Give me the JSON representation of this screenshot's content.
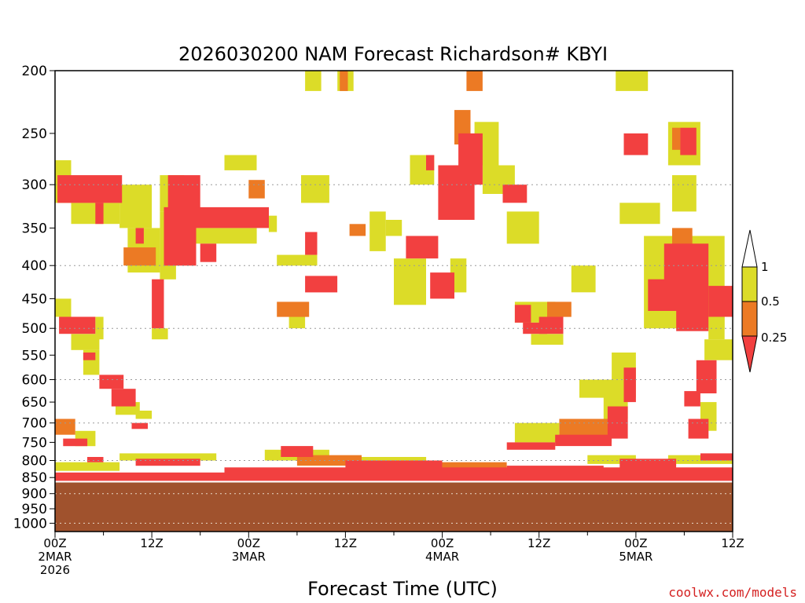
{
  "chart_data": {
    "type": "heatmap",
    "title": "2026030200 NAM Forecast Richardson# KBYI",
    "xlabel": "Forecast Time (UTC)",
    "ylabel": "",
    "x_range_hours": [
      0,
      84
    ],
    "y_range_hpa": [
      200,
      1030
    ],
    "y_scale": "log-pressure",
    "y_ticks": [
      200,
      250,
      300,
      350,
      400,
      450,
      500,
      550,
      600,
      650,
      700,
      750,
      800,
      850,
      900,
      950,
      1000
    ],
    "y_gridlines": [
      300,
      400,
      500,
      600,
      700,
      800,
      900,
      1000
    ],
    "x_ticks": [
      {
        "hour": 0,
        "lines": [
          "00Z",
          "2MAR",
          "2026"
        ]
      },
      {
        "hour": 12,
        "lines": [
          "12Z"
        ]
      },
      {
        "hour": 24,
        "lines": [
          "00Z",
          "3MAR"
        ]
      },
      {
        "hour": 36,
        "lines": [
          "12Z"
        ]
      },
      {
        "hour": 48,
        "lines": [
          "00Z",
          "4MAR"
        ]
      },
      {
        "hour": 60,
        "lines": [
          "12Z"
        ]
      },
      {
        "hour": 72,
        "lines": [
          "00Z",
          "5MAR"
        ]
      },
      {
        "hour": 84,
        "lines": [
          "12Z"
        ]
      }
    ],
    "legend": {
      "placement": "right",
      "labels": [
        "1",
        "0.5",
        "0.25"
      ],
      "bins": [
        {
          "range": "0.5-1",
          "color": "#dcdc28"
        },
        {
          "range": "0.25-0.5",
          "color": "#ec7a24"
        },
        {
          "range": "<0.25",
          "color": "#f24040"
        }
      ]
    },
    "ground_level_hpa": 865,
    "ground_color": "#a0522d",
    "regions": [
      {
        "level": "lt0.25",
        "hours": [
          0.3,
          8.3
        ],
        "p": [
          290,
          320
        ]
      },
      {
        "level": "lt0.25",
        "hours": [
          5,
          6
        ],
        "p": [
          320,
          345
        ]
      },
      {
        "level": "0.5-1",
        "hours": [
          0,
          2
        ],
        "p": [
          275,
          320
        ]
      },
      {
        "level": "0.5-1",
        "hours": [
          2,
          8
        ],
        "p": [
          320,
          345
        ]
      },
      {
        "level": "0.5-1",
        "hours": [
          8,
          12
        ],
        "p": [
          300,
          350
        ]
      },
      {
        "level": "0.5-1",
        "hours": [
          9,
          13
        ],
        "p": [
          350,
          410
        ]
      },
      {
        "level": "0.25-0.5",
        "hours": [
          8.5,
          12.5
        ],
        "p": [
          375,
          400
        ]
      },
      {
        "level": "lt0.25",
        "hours": [
          10,
          11
        ],
        "p": [
          350,
          370
        ]
      },
      {
        "level": "0.5-1",
        "hours": [
          13,
          16
        ],
        "p": [
          290,
          330
        ]
      },
      {
        "level": "lt0.25",
        "hours": [
          14,
          18
        ],
        "p": [
          290,
          330
        ]
      },
      {
        "level": "lt0.25",
        "hours": [
          13.5,
          17.5
        ],
        "p": [
          325,
          400
        ]
      },
      {
        "level": "0.5-1",
        "hours": [
          13,
          15
        ],
        "p": [
          330,
          420
        ]
      },
      {
        "level": "lt0.25",
        "hours": [
          17,
          26.5
        ],
        "p": [
          325,
          350
        ]
      },
      {
        "level": "0.5-1",
        "hours": [
          17,
          25
        ],
        "p": [
          350,
          370
        ]
      },
      {
        "level": "0.5-1",
        "hours": [
          21,
          25
        ],
        "p": [
          270,
          285
        ]
      },
      {
        "level": "0.25-0.5",
        "hours": [
          24,
          26
        ],
        "p": [
          295,
          315
        ]
      },
      {
        "level": "lt0.25",
        "hours": [
          18,
          20
        ],
        "p": [
          370,
          395
        ]
      },
      {
        "level": "lt0.25",
        "hours": [
          12,
          13.5
        ],
        "p": [
          420,
          500
        ]
      },
      {
        "level": "0.5-1",
        "hours": [
          12,
          14
        ],
        "p": [
          500,
          520
        ]
      },
      {
        "level": "0.5-1",
        "hours": [
          0,
          2
        ],
        "p": [
          450,
          480
        ]
      },
      {
        "level": "lt0.25",
        "hours": [
          0.5,
          5
        ],
        "p": [
          480,
          510
        ]
      },
      {
        "level": "0.5-1",
        "hours": [
          5,
          6
        ],
        "p": [
          480,
          520
        ]
      },
      {
        "level": "0.5-1",
        "hours": [
          2,
          5.5
        ],
        "p": [
          510,
          540
        ]
      },
      {
        "level": "0.5-1",
        "hours": [
          3.5,
          5.5
        ],
        "p": [
          540,
          590
        ]
      },
      {
        "level": "lt0.25",
        "hours": [
          3.5,
          5
        ],
        "p": [
          545,
          560
        ]
      },
      {
        "level": "lt0.25",
        "hours": [
          5.5,
          8.5
        ],
        "p": [
          590,
          620
        ]
      },
      {
        "level": "lt0.25",
        "hours": [
          7,
          10
        ],
        "p": [
          620,
          660
        ]
      },
      {
        "level": "0.5-1",
        "hours": [
          7.5,
          10.5
        ],
        "p": [
          650,
          680
        ]
      },
      {
        "level": "0.5-1",
        "hours": [
          10,
          12
        ],
        "p": [
          670,
          690
        ]
      },
      {
        "level": "0.25-0.5",
        "hours": [
          0,
          2.5
        ],
        "p": [
          690,
          730
        ]
      },
      {
        "level": "0.5-1",
        "hours": [
          2.5,
          5
        ],
        "p": [
          720,
          760
        ]
      },
      {
        "level": "lt0.25",
        "hours": [
          1,
          4
        ],
        "p": [
          740,
          760
        ]
      },
      {
        "level": "lt0.25",
        "hours": [
          9.5,
          11.5
        ],
        "p": [
          700,
          715
        ]
      },
      {
        "level": "lt0.25",
        "hours": [
          31,
          32.5
        ],
        "p": [
          355,
          385
        ]
      },
      {
        "level": "0.5-1",
        "hours": [
          27.5,
          32.5
        ],
        "p": [
          385,
          400
        ]
      },
      {
        "level": "lt0.25",
        "hours": [
          31,
          35
        ],
        "p": [
          415,
          440
        ]
      },
      {
        "level": "0.25-0.5",
        "hours": [
          27.5,
          31.5
        ],
        "p": [
          455,
          480
        ]
      },
      {
        "level": "0.5-1",
        "hours": [
          29,
          31
        ],
        "p": [
          480,
          500
        ]
      },
      {
        "level": "0.5-1",
        "hours": [
          30.5,
          34
        ],
        "p": [
          290,
          320
        ]
      },
      {
        "level": "0.5-1",
        "hours": [
          26.5,
          27.5
        ],
        "p": [
          335,
          355
        ]
      },
      {
        "level": "0.5-1",
        "hours": [
          39,
          41
        ],
        "p": [
          330,
          380
        ]
      },
      {
        "level": "0.5-1",
        "hours": [
          41,
          43
        ],
        "p": [
          340,
          360
        ]
      },
      {
        "level": "0.25-0.5",
        "hours": [
          36.5,
          38.5
        ],
        "p": [
          345,
          360
        ]
      },
      {
        "level": "lt0.25",
        "hours": [
          43.5,
          47.5
        ],
        "p": [
          360,
          390
        ]
      },
      {
        "level": "0.5-1",
        "hours": [
          42,
          46
        ],
        "p": [
          390,
          460
        ]
      },
      {
        "level": "lt0.25",
        "hours": [
          46.5,
          49.5
        ],
        "p": [
          410,
          450
        ]
      },
      {
        "level": "0.5-1",
        "hours": [
          49,
          51
        ],
        "p": [
          390,
          440
        ]
      },
      {
        "level": "lt0.25",
        "hours": [
          47.5,
          52
        ],
        "p": [
          280,
          340
        ]
      },
      {
        "level": "lt0.25",
        "hours": [
          50,
          53
        ],
        "p": [
          250,
          300
        ]
      },
      {
        "level": "0.25-0.5",
        "hours": [
          49.5,
          51.5
        ],
        "p": [
          230,
          260
        ]
      },
      {
        "level": "0.5-1",
        "hours": [
          52,
          55
        ],
        "p": [
          240,
          280
        ]
      },
      {
        "level": "0.5-1",
        "hours": [
          44,
          47
        ],
        "p": [
          270,
          300
        ]
      },
      {
        "level": "lt0.25",
        "hours": [
          46,
          47
        ],
        "p": [
          270,
          285
        ]
      },
      {
        "level": "0.5-1",
        "hours": [
          53,
          57
        ],
        "p": [
          280,
          310
        ]
      },
      {
        "level": "lt0.25",
        "hours": [
          55.5,
          58.5
        ],
        "p": [
          300,
          320
        ]
      },
      {
        "level": "0.5-1",
        "hours": [
          56,
          60
        ],
        "p": [
          330,
          370
        ]
      },
      {
        "level": "0.25-0.5",
        "hours": [
          51,
          53
        ],
        "p": [
          200,
          215
        ]
      },
      {
        "level": "0.5-1",
        "hours": [
          31,
          33
        ],
        "p": [
          200,
          215
        ]
      },
      {
        "level": "0.5-1",
        "hours": [
          35,
          37
        ],
        "p": [
          200,
          215
        ]
      },
      {
        "level": "0.25-0.5",
        "hours": [
          35.3,
          36.3
        ],
        "p": [
          200,
          215
        ]
      },
      {
        "level": "0.5-1",
        "hours": [
          57,
          62
        ],
        "p": [
          455,
          490
        ]
      },
      {
        "level": "lt0.25",
        "hours": [
          57,
          59
        ],
        "p": [
          460,
          490
        ]
      },
      {
        "level": "lt0.25",
        "hours": [
          58,
          61
        ],
        "p": [
          490,
          510
        ]
      },
      {
        "level": "0.25-0.5",
        "hours": [
          61,
          64
        ],
        "p": [
          455,
          480
        ]
      },
      {
        "level": "lt0.25",
        "hours": [
          60,
          63
        ],
        "p": [
          480,
          510
        ]
      },
      {
        "level": "0.5-1",
        "hours": [
          59,
          63
        ],
        "p": [
          510,
          530
        ]
      },
      {
        "level": "0.5-1",
        "hours": [
          64,
          67
        ],
        "p": [
          400,
          440
        ]
      },
      {
        "level": "0.5-1",
        "hours": [
          69,
          72
        ],
        "p": [
          545,
          600
        ]
      },
      {
        "level": "lt0.25",
        "hours": [
          70.5,
          72
        ],
        "p": [
          575,
          650
        ]
      },
      {
        "level": "0.5-1",
        "hours": [
          65,
          72
        ],
        "p": [
          600,
          640
        ]
      },
      {
        "level": "0.5-1",
        "hours": [
          68,
          71
        ],
        "p": [
          630,
          690
        ]
      },
      {
        "level": "lt0.25",
        "hours": [
          68.5,
          71
        ],
        "p": [
          660,
          740
        ]
      },
      {
        "level": "0.25-0.5",
        "hours": [
          62.5,
          69
        ],
        "p": [
          690,
          750
        ]
      },
      {
        "level": "0.5-1",
        "hours": [
          57,
          62.5
        ],
        "p": [
          700,
          750
        ]
      },
      {
        "level": "lt0.25",
        "hours": [
          62,
          69
        ],
        "p": [
          730,
          760
        ]
      },
      {
        "level": "lt0.25",
        "hours": [
          56,
          62
        ],
        "p": [
          750,
          770
        ]
      },
      {
        "level": "0.5-1",
        "hours": [
          70,
          75
        ],
        "p": [
          320,
          345
        ]
      },
      {
        "level": "lt0.25",
        "hours": [
          70.5,
          73.5
        ],
        "p": [
          250,
          270
        ]
      },
      {
        "level": "0.5-1",
        "hours": [
          69.5,
          73.5
        ],
        "p": [
          200,
          215
        ]
      },
      {
        "level": "0.5-1",
        "hours": [
          76,
          80
        ],
        "p": [
          240,
          280
        ]
      },
      {
        "level": "lt0.25",
        "hours": [
          77.5,
          79.5
        ],
        "p": [
          245,
          270
        ]
      },
      {
        "level": "0.25-0.5",
        "hours": [
          76.5,
          77.5
        ],
        "p": [
          245,
          265
        ]
      },
      {
        "level": "0.5-1",
        "hours": [
          76.5,
          79.5
        ],
        "p": [
          290,
          330
        ]
      },
      {
        "level": "0.5-1",
        "hours": [
          73,
          83
        ],
        "p": [
          360,
          500
        ]
      },
      {
        "level": "lt0.25",
        "hours": [
          75.5,
          81
        ],
        "p": [
          370,
          470
        ]
      },
      {
        "level": "0.25-0.5",
        "hours": [
          76.5,
          79
        ],
        "p": [
          350,
          380
        ]
      },
      {
        "level": "lt0.25",
        "hours": [
          73.5,
          78
        ],
        "p": [
          420,
          470
        ]
      },
      {
        "level": "lt0.25",
        "hours": [
          81,
          84
        ],
        "p": [
          430,
          480
        ]
      },
      {
        "level": "lt0.25",
        "hours": [
          77,
          81
        ],
        "p": [
          470,
          505
        ]
      },
      {
        "level": "0.5-1",
        "hours": [
          81,
          83
        ],
        "p": [
          480,
          520
        ]
      },
      {
        "level": "0.5-1",
        "hours": [
          80.5,
          84
        ],
        "p": [
          520,
          560
        ]
      },
      {
        "level": "lt0.25",
        "hours": [
          79.5,
          82
        ],
        "p": [
          560,
          630
        ]
      },
      {
        "level": "lt0.25",
        "hours": [
          78,
          80
        ],
        "p": [
          625,
          660
        ]
      },
      {
        "level": "0.5-1",
        "hours": [
          80,
          82
        ],
        "p": [
          650,
          720
        ]
      },
      {
        "level": "lt0.25",
        "hours": [
          78.5,
          81
        ],
        "p": [
          690,
          740
        ]
      },
      {
        "level": "lt0.25",
        "hours": [
          0,
          84
        ],
        "p": [
          835,
          860
        ]
      },
      {
        "level": "lt0.25",
        "hours": [
          21,
          84
        ],
        "p": [
          820,
          840
        ]
      },
      {
        "level": "0.5-1",
        "hours": [
          26,
          34
        ],
        "p": [
          770,
          800
        ]
      },
      {
        "level": "0.25-0.5",
        "hours": [
          30,
          38
        ],
        "p": [
          785,
          815
        ]
      },
      {
        "level": "lt0.25",
        "hours": [
          28,
          32
        ],
        "p": [
          760,
          790
        ]
      },
      {
        "level": "lt0.25",
        "hours": [
          36,
          48
        ],
        "p": [
          800,
          825
        ]
      },
      {
        "level": "0.5-1",
        "hours": [
          38,
          46
        ],
        "p": [
          790,
          810
        ]
      },
      {
        "level": "0.25-0.5",
        "hours": [
          46,
          56
        ],
        "p": [
          805,
          830
        ]
      },
      {
        "level": "lt0.25",
        "hours": [
          56,
          68
        ],
        "p": [
          815,
          850
        ]
      },
      {
        "level": "0.5-1",
        "hours": [
          66,
          72
        ],
        "p": [
          785,
          810
        ]
      },
      {
        "level": "lt0.25",
        "hours": [
          70,
          77
        ],
        "p": [
          795,
          830
        ]
      },
      {
        "level": "0.5-1",
        "hours": [
          76,
          84
        ],
        "p": [
          785,
          810
        ]
      },
      {
        "level": "lt0.25",
        "hours": [
          80,
          84
        ],
        "p": [
          780,
          800
        ]
      },
      {
        "level": "0.5-1",
        "hours": [
          8,
          20
        ],
        "p": [
          780,
          800
        ]
      },
      {
        "level": "lt0.25",
        "hours": [
          10,
          18
        ],
        "p": [
          795,
          815
        ]
      },
      {
        "level": "0.5-1",
        "hours": [
          0,
          8
        ],
        "p": [
          805,
          830
        ]
      },
      {
        "level": "lt0.25",
        "hours": [
          4,
          6
        ],
        "p": [
          790,
          805
        ]
      }
    ]
  },
  "legend_labels": {
    "top": "1",
    "mid": "0.5",
    "low": "0.25"
  },
  "credit": "coolwx.com/models",
  "colors": {
    "yellow": "#dcdc28",
    "orange": "#ec7a24",
    "red": "#f24040",
    "ground": "#a0522d",
    "credit": "#d42020"
  }
}
